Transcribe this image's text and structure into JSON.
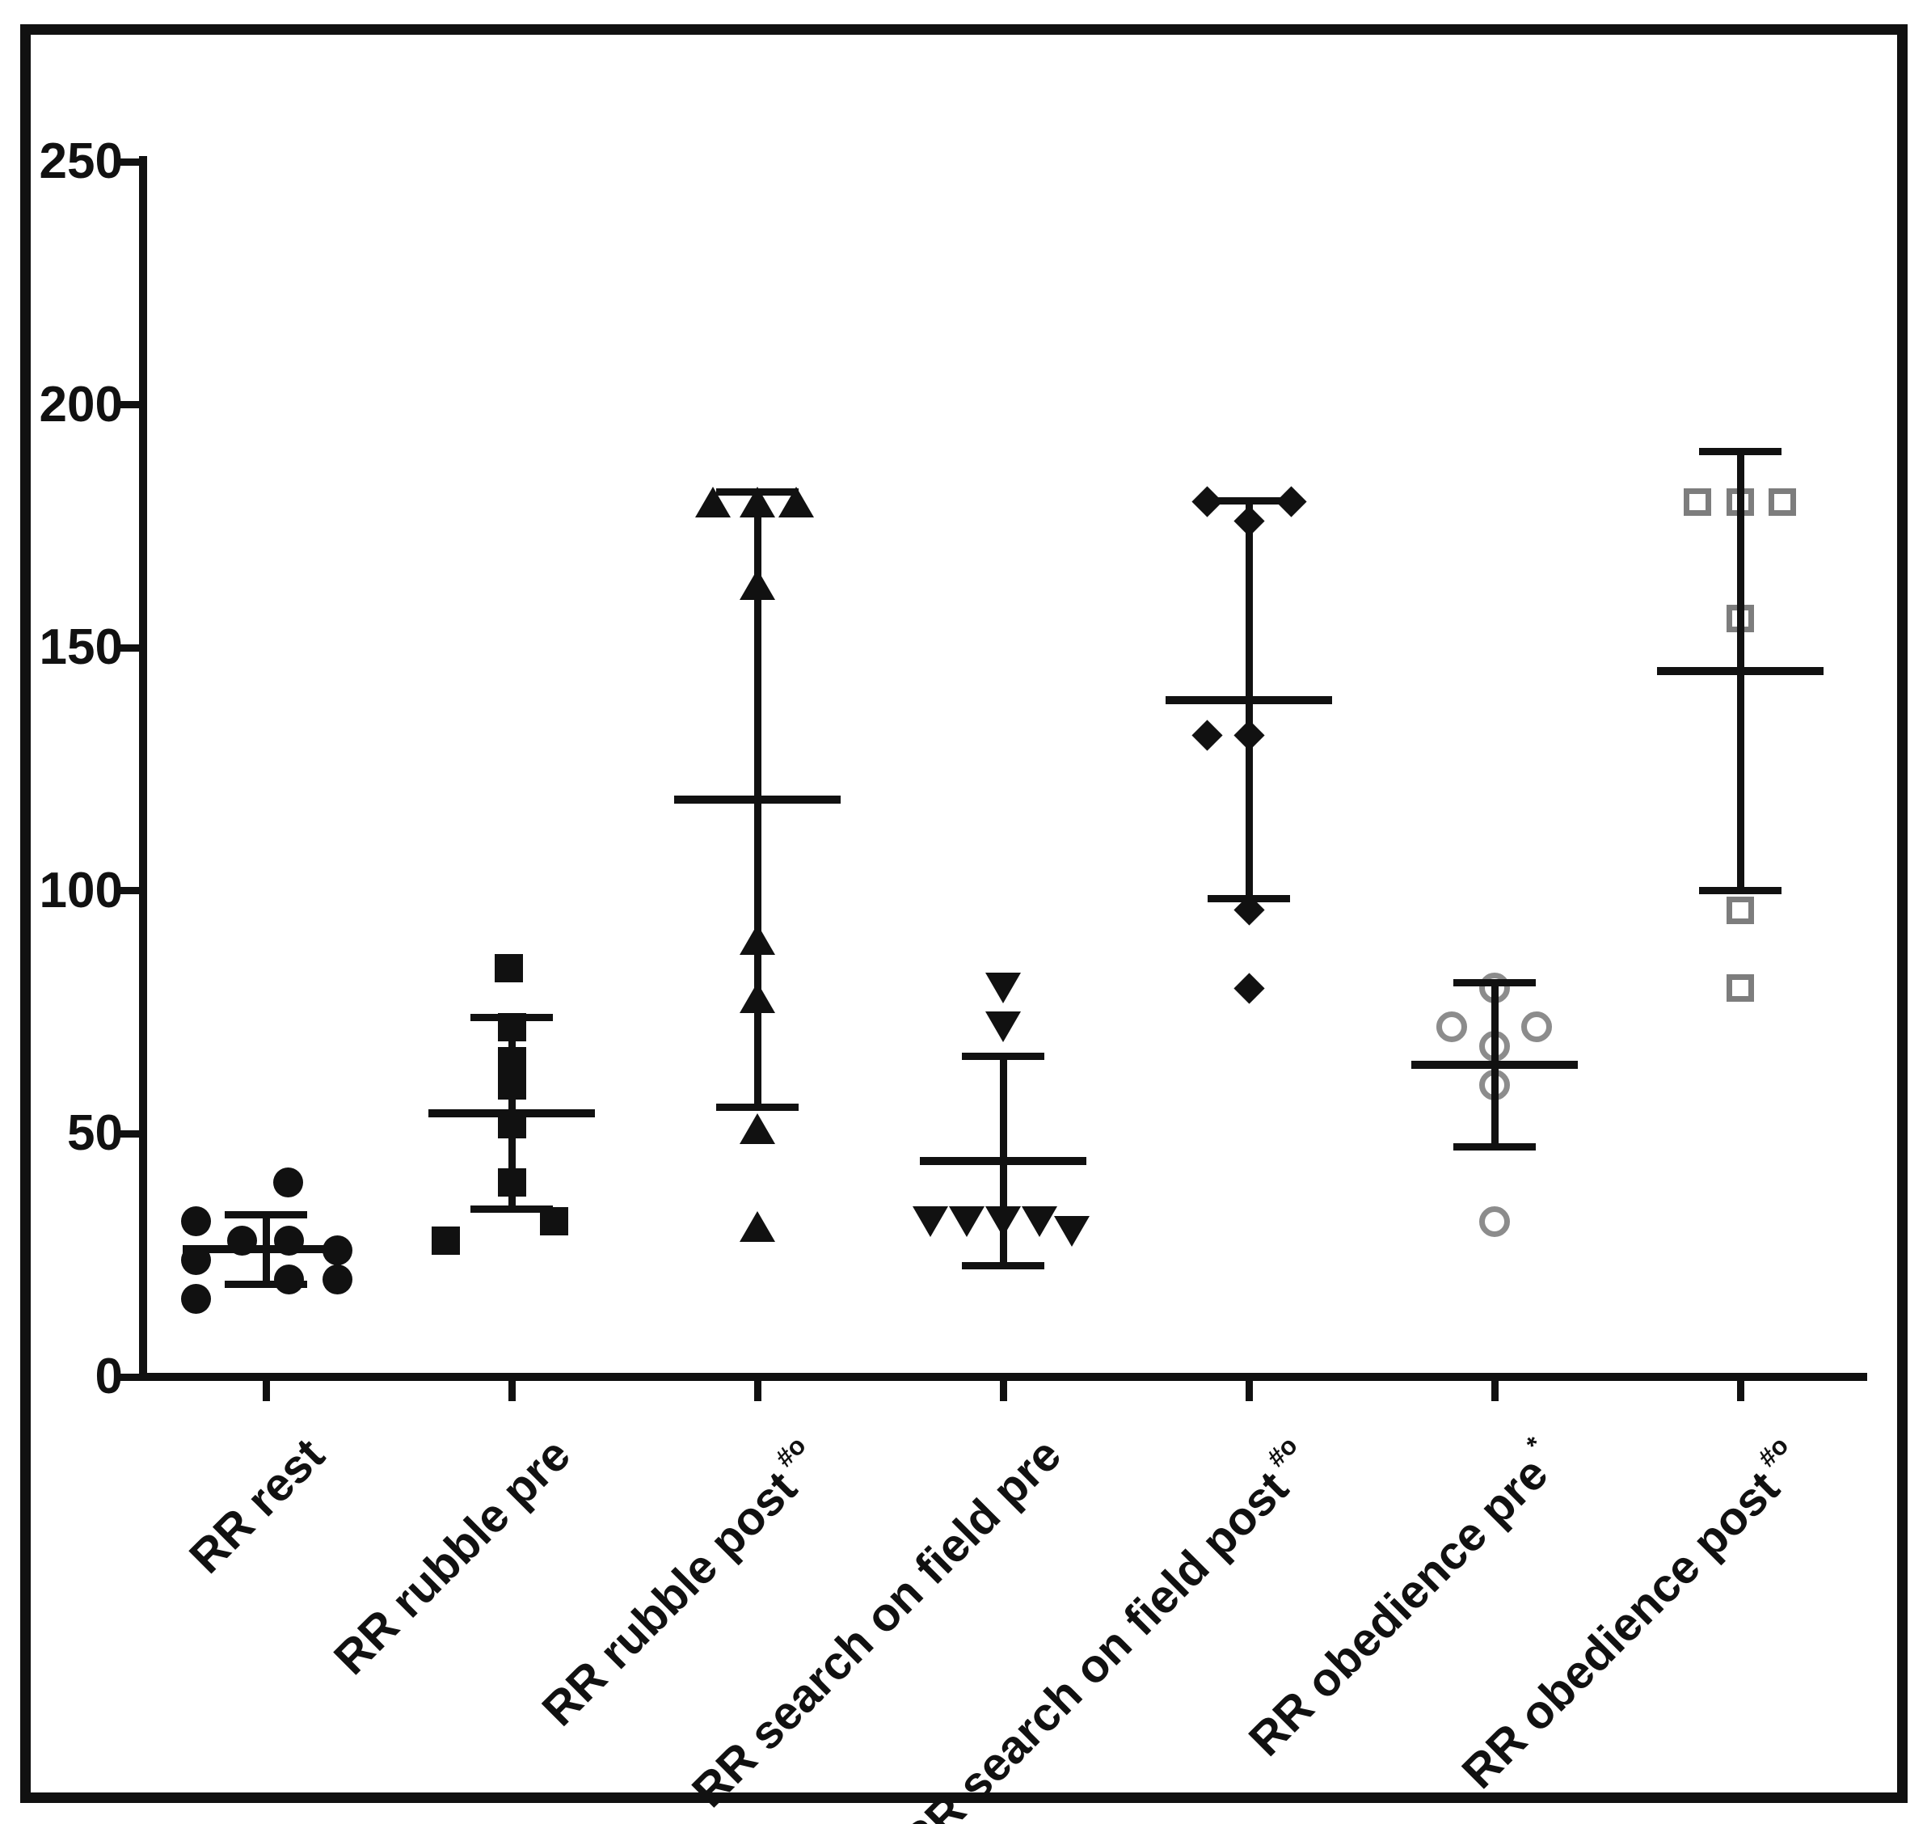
{
  "figure": {
    "background": "#ffffff",
    "frame_color": "#111111",
    "axis_color": "#111111"
  },
  "chart_data": {
    "type": "scatter",
    "title": "",
    "xlabel": "",
    "ylabel": "",
    "ylim": [
      0,
      250
    ],
    "grid": false,
    "legend": "none",
    "error_bars": "mean ± SD",
    "yticks": [
      {
        "label": "0",
        "value": 0
      },
      {
        "label": "50",
        "value": 50
      },
      {
        "label": "100",
        "value": 100
      },
      {
        "label": "150",
        "value": 150
      },
      {
        "label": "200",
        "value": 200
      },
      {
        "label": "250",
        "value": 250
      }
    ],
    "groups": [
      {
        "label": "RR rest",
        "label_sup": "",
        "marker": "circle-filled",
        "color": "#111111",
        "mean": 26.2,
        "sd": 7.2,
        "points": [
          {
            "v": 40,
            "dx": 27
          },
          {
            "v": 32,
            "dx": -87
          },
          {
            "v": 28,
            "dx": -30
          },
          {
            "v": 28,
            "dx": 28
          },
          {
            "v": 26,
            "dx": 88
          },
          {
            "v": 24,
            "dx": -87
          },
          {
            "v": 20,
            "dx": 28
          },
          {
            "v": 20,
            "dx": 88
          },
          {
            "v": 16,
            "dx": -87
          }
        ]
      },
      {
        "label": "RR rubble pre",
        "label_sup": "",
        "marker": "square-filled",
        "color": "#111111",
        "mean": 54.2,
        "sd": 19.7,
        "points": [
          {
            "v": 84,
            "dx": -4
          },
          {
            "v": 72,
            "dx": 0
          },
          {
            "v": 65,
            "dx": 0
          },
          {
            "v": 60,
            "dx": 0
          },
          {
            "v": 52,
            "dx": 0
          },
          {
            "v": 40,
            "dx": 0
          },
          {
            "v": 32,
            "dx": 52
          },
          {
            "v": 28,
            "dx": -82
          }
        ]
      },
      {
        "label": "RR rubble post",
        "label_sup": "#o",
        "marker": "triangle-up",
        "color": "#111111",
        "mean": 118.7,
        "sd": 63.3,
        "points": [
          {
            "v": 180,
            "dx": -55
          },
          {
            "v": 180,
            "dx": 0
          },
          {
            "v": 180,
            "dx": 48
          },
          {
            "v": 163,
            "dx": 0
          },
          {
            "v": 90,
            "dx": 0
          },
          {
            "v": 78,
            "dx": 0
          },
          {
            "v": 51,
            "dx": 0
          },
          {
            "v": 31,
            "dx": 0
          }
        ]
      },
      {
        "label": "RR search on field pre",
        "label_sup": "",
        "marker": "triangle-down",
        "color": "#111111",
        "mean": 44.4,
        "sd": 21.6,
        "points": [
          {
            "v": 80,
            "dx": 0
          },
          {
            "v": 72,
            "dx": 0
          },
          {
            "v": 32,
            "dx": -90
          },
          {
            "v": 32,
            "dx": -45
          },
          {
            "v": 32,
            "dx": 0
          },
          {
            "v": 32,
            "dx": 45
          },
          {
            "v": 30,
            "dx": 85
          }
        ]
      },
      {
        "label": "RR search on field post",
        "label_sup": "#o",
        "marker": "diamond-filled",
        "color": "#111111",
        "mean": 139.3,
        "sd": 40.9,
        "points": [
          {
            "v": 180,
            "dx": -52
          },
          {
            "v": 180,
            "dx": 52
          },
          {
            "v": 176,
            "dx": 0
          },
          {
            "v": 132,
            "dx": -52
          },
          {
            "v": 132,
            "dx": 0
          },
          {
            "v": 96,
            "dx": 0
          },
          {
            "v": 80,
            "dx": 0
          }
        ]
      },
      {
        "label": "RR obedience pre",
        "label_sup": "*",
        "marker": "circle-open",
        "color": "#8c8c8c",
        "mean": 64.2,
        "sd": 16.9,
        "points": [
          {
            "v": 80,
            "dx": 0
          },
          {
            "v": 72,
            "dx": -53
          },
          {
            "v": 72,
            "dx": 52
          },
          {
            "v": 68,
            "dx": 0
          },
          {
            "v": 60,
            "dx": 0
          },
          {
            "v": 32,
            "dx": 0
          }
        ]
      },
      {
        "label": "RR obedience post",
        "label_sup": "#o",
        "marker": "square-open",
        "color": "#7d7d7d",
        "mean": 145.2,
        "sd": 45.1,
        "points": [
          {
            "v": 180,
            "dx": -53
          },
          {
            "v": 180,
            "dx": 0
          },
          {
            "v": 180,
            "dx": 52
          },
          {
            "v": 156,
            "dx": 0
          },
          {
            "v": 96,
            "dx": 0
          },
          {
            "v": 80,
            "dx": 0
          }
        ]
      }
    ]
  }
}
